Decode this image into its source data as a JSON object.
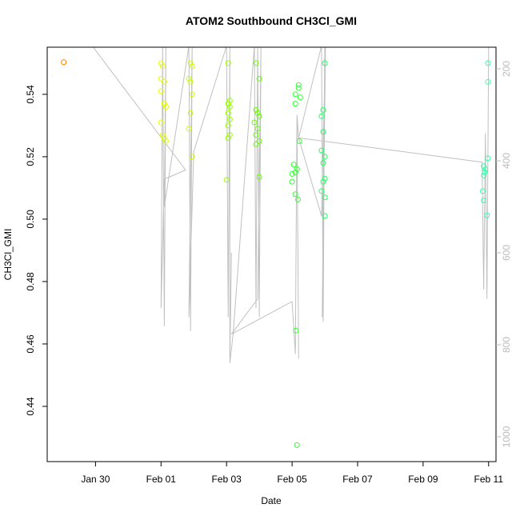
{
  "chart_data": {
    "type": "scatter",
    "title": "ATOM2 Southbound CH3Cl_GMI",
    "x_label": "Date",
    "y_label": "CH3Cl_GMI",
    "xlim": [
      28.525,
      42.225
    ],
    "xticks": [
      {
        "value": 30,
        "label": "Jan 30"
      },
      {
        "value": 32,
        "label": "Feb 01"
      },
      {
        "value": 34,
        "label": "Feb 03"
      },
      {
        "value": 36,
        "label": "Feb 05"
      },
      {
        "value": 38,
        "label": "Feb 07"
      },
      {
        "value": 40,
        "label": "Feb 09"
      },
      {
        "value": 42,
        "label": "Feb 11"
      }
    ],
    "ylim": [
      0.4223,
      0.5551
    ],
    "yticks": [
      0.44,
      0.46,
      0.48,
      {
        "value": 0.5,
        "label": "0.50"
      },
      0.52,
      0.54
    ],
    "y2lim": [
      1054,
      153
    ],
    "y2ticks": [
      200,
      400,
      600,
      800,
      1000
    ],
    "y2_color": "#bbbbbb",
    "series": [
      {
        "color": "#ff8000",
        "x": [
          29.03
        ],
        "values": [
          0.5503
        ]
      },
      {
        "color": "#e6ff00",
        "x": [
          32.0,
          32.05,
          32.0,
          32.1,
          32.0,
          32.1,
          32.15,
          32.0,
          32.05,
          32.1,
          32.15
        ],
        "values": [
          0.55,
          0.549,
          0.545,
          0.544,
          0.541,
          0.537,
          0.536,
          0.531,
          0.527,
          0.526,
          0.525
        ]
      },
      {
        "color": "#ccff00",
        "x": [
          32.9,
          32.95,
          32.85,
          32.9,
          32.95,
          32.9,
          32.85,
          32.95
        ],
        "values": [
          0.55,
          0.549,
          0.545,
          0.544,
          0.54,
          0.534,
          0.529,
          0.52
        ]
      },
      {
        "color": "#99ff00",
        "x": [
          34.05,
          34.1,
          34.05,
          34.1,
          34.05,
          34.1,
          34.05,
          34.1,
          34.05,
          34.0
        ],
        "values": [
          0.55,
          0.538,
          0.537,
          0.536,
          0.534,
          0.532,
          0.53,
          0.527,
          0.526,
          0.5126
        ]
      },
      {
        "color": "#66ff00",
        "x": [
          34.9,
          35.0,
          34.9,
          34.95,
          35.0,
          34.85,
          34.95,
          34.9,
          35.0,
          34.9,
          35.0
        ],
        "values": [
          0.55,
          0.545,
          0.535,
          0.534,
          0.533,
          0.531,
          0.529,
          0.527,
          0.525,
          0.524,
          0.5135
        ]
      },
      {
        "color": "#33ff33",
        "x": [
          36.2,
          36.2,
          36.1,
          36.25,
          36.1,
          36.22,
          36.05,
          36.15,
          36.1,
          36.0,
          36.0,
          36.1,
          36.18,
          36.12,
          36.15
        ],
        "values": [
          0.543,
          0.542,
          0.54,
          0.539,
          0.537,
          0.525,
          0.5175,
          0.516,
          0.515,
          0.5145,
          0.512,
          0.508,
          0.5063,
          0.4643,
          0.4276
        ]
      },
      {
        "color": "#22ff66",
        "x": [
          37.0,
          36.95,
          36.9,
          36.95,
          36.9,
          37.0,
          36.95,
          37.0,
          36.95,
          36.9,
          37.0,
          37.0
        ],
        "values": [
          0.55,
          0.535,
          0.533,
          0.528,
          0.522,
          0.52,
          0.518,
          0.513,
          0.512,
          0.509,
          0.507,
          0.501
        ]
      },
      {
        "color": "#33ffaa",
        "x": [
          41.98,
          41.98,
          41.98,
          41.85,
          41.9,
          41.88,
          41.85,
          41.82,
          41.85,
          41.95
        ],
        "values": [
          0.55,
          0.544,
          0.5195,
          0.517,
          0.516,
          0.515,
          0.514,
          0.509,
          0.506,
          0.5012
        ]
      }
    ],
    "line_series": {
      "axis": "y2",
      "color": "#c0c0c0",
      "x": [
        29.9,
        32.75,
        32.1,
        32.0,
        32.05,
        32.1,
        32.15,
        32.1,
        32.85,
        32.9,
        32.95,
        32.85,
        33.0,
        34.0,
        34.05,
        34.1,
        34.1,
        34.15,
        34.1,
        34.2,
        34.85,
        34.9,
        34.95,
        35.0,
        35.05,
        34.95,
        34.15,
        36.0,
        36.05,
        36.1,
        36.15,
        36.2,
        36.15,
        36.2,
        36.9,
        36.95,
        37.0,
        36.92,
        37.02,
        36.9,
        36.2,
        41.8,
        41.85,
        41.9,
        41.95,
        42.0
      ],
      "values": [
        150,
        420,
        440,
        720,
        150,
        760,
        150,
        500,
        150,
        770,
        150,
        740,
        380,
        150,
        740,
        150,
        830,
        600,
        840,
        777,
        150,
        720,
        150,
        740,
        150,
        700,
        777,
        706,
        760,
        820,
        300,
        830,
        300,
        350,
        150,
        750,
        150,
        740,
        150,
        520,
        350,
        403,
        680,
        340,
        700,
        150
      ]
    }
  }
}
